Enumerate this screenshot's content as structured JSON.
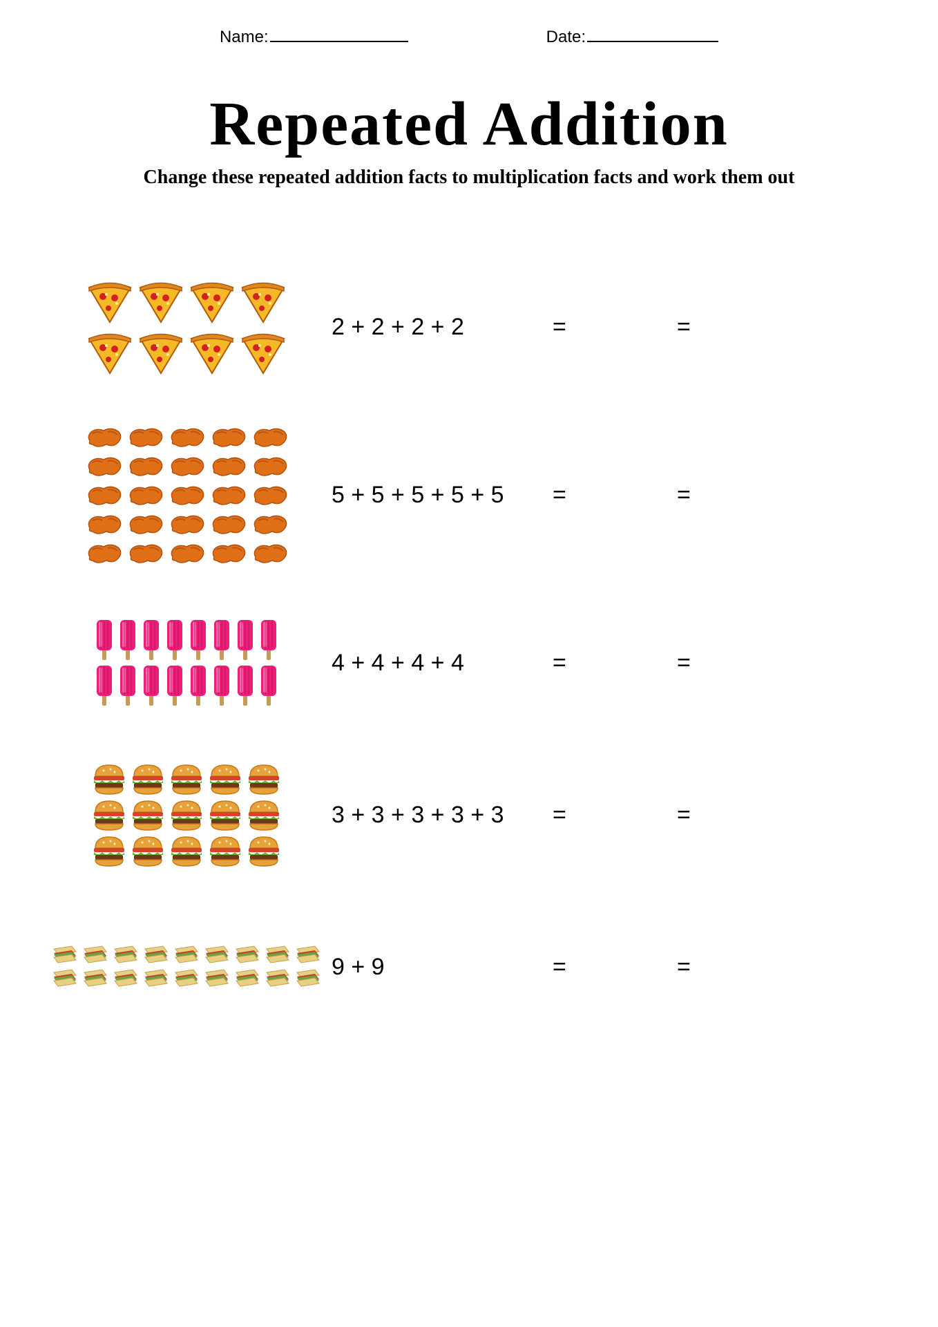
{
  "header": {
    "name_label": "Name:",
    "date_label": "Date:"
  },
  "title": "Repeated Addition",
  "subtitle": "Change these repeated addition facts to multiplication facts and work them out",
  "equals_sign": "=",
  "problems": [
    {
      "icon": "pizza",
      "rows": 2,
      "cols": 4,
      "expression": "2 + 2 + 2 + 2",
      "colors": {
        "crust": "#e08820",
        "crust_dark": "#b35a0a",
        "cheese": "#f5b928",
        "topping": "#d32020"
      }
    },
    {
      "icon": "wing",
      "rows": 5,
      "cols": 5,
      "expression": "5 + 5 + 5 + 5 + 5",
      "colors": {
        "body": "#e07018",
        "shade": "#b35010"
      }
    },
    {
      "icon": "popsicle",
      "rows": 2,
      "cols": 8,
      "expression": "4 + 4 + 4 + 4",
      "colors": {
        "ice": "#ec1e79",
        "highlight": "#f772b0",
        "stick": "#c69a5a"
      }
    },
    {
      "icon": "burger",
      "rows": 3,
      "cols": 5,
      "expression": "3 + 3 + 3 + 3 + 3",
      "colors": {
        "bun": "#e8a23a",
        "bun_dark": "#c77818",
        "lettuce": "#6ab030",
        "tomato": "#d84030",
        "patty": "#6b3818"
      }
    },
    {
      "icon": "sandwich",
      "rows": 2,
      "cols": 9,
      "expression": "9 + 9",
      "colors": {
        "bread": "#e8d080",
        "crust": "#c0a050",
        "filling_red": "#c04030",
        "filling_green": "#70a040"
      }
    }
  ]
}
